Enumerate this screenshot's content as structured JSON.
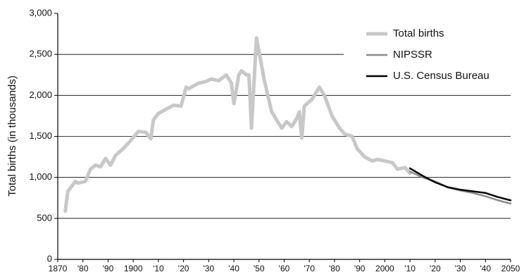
{
  "chart_data": {
    "type": "line",
    "y_label": "Total births (in thousands)",
    "xlim": [
      1870,
      2050
    ],
    "xticks": [
      1870,
      {
        "value": 1880,
        "label": "'80"
      },
      {
        "value": 1890,
        "label": "'90"
      },
      1900,
      {
        "value": 1910,
        "label": "'10"
      },
      {
        "value": 1920,
        "label": "'20"
      },
      {
        "value": 1930,
        "label": "'30"
      },
      {
        "value": 1940,
        "label": "'40"
      },
      {
        "value": 1950,
        "label": "'50"
      },
      {
        "value": 1960,
        "label": "'60"
      },
      {
        "value": 1970,
        "label": "'70"
      },
      {
        "value": 1980,
        "label": "'80"
      },
      {
        "value": 1990,
        "label": "'90"
      },
      2000,
      {
        "value": 2010,
        "label": "'10"
      },
      {
        "value": 2020,
        "label": "'20"
      },
      {
        "value": 2030,
        "label": "'30"
      },
      {
        "value": 2040,
        "label": "'40"
      },
      2050
    ],
    "ylim": [
      0,
      3000
    ],
    "yticks": [
      0,
      500,
      {
        "value": 1000,
        "label": "1,000"
      },
      {
        "value": 1500,
        "label": "1,500"
      },
      {
        "value": 2000,
        "label": "2,000"
      },
      {
        "value": 2500,
        "label": "2,500"
      },
      {
        "value": 3000,
        "label": "3,000"
      }
    ],
    "grid": true,
    "legend": "upper right",
    "series": [
      {
        "name": "Total births",
        "color": "#c8c8c8",
        "x": [
          1873,
          1874,
          1877,
          1878,
          1881,
          1883,
          1885,
          1887,
          1889,
          1891,
          1893,
          1896,
          1899,
          1902,
          1905,
          1907,
          1908,
          1910,
          1913,
          1916,
          1919,
          1921,
          1922,
          1926,
          1929,
          1931,
          1934,
          1937,
          1939,
          1940,
          1942,
          1943,
          1945,
          1946,
          1947,
          1949,
          1952,
          1955,
          1957,
          1959,
          1961,
          1963,
          1965,
          1966,
          1967,
          1968,
          1971,
          1974,
          1976,
          1979,
          1982,
          1984,
          1987,
          1989,
          1992,
          1995,
          1997,
          2000,
          2003,
          2005,
          2008,
          2010
        ],
        "values": [
          590,
          830,
          950,
          930,
          950,
          1100,
          1150,
          1130,
          1230,
          1150,
          1270,
          1350,
          1450,
          1560,
          1550,
          1470,
          1700,
          1780,
          1830,
          1880,
          1870,
          2100,
          2080,
          2150,
          2170,
          2200,
          2180,
          2250,
          2150,
          1900,
          2250,
          2300,
          2250,
          2250,
          1600,
          2700,
          2200,
          1800,
          1700,
          1600,
          1680,
          1620,
          1720,
          1800,
          1480,
          1870,
          1950,
          2100,
          2000,
          1750,
          1600,
          1530,
          1500,
          1350,
          1250,
          1200,
          1220,
          1200,
          1180,
          1100,
          1120,
          1050
        ]
      },
      {
        "name": "NIPSSR",
        "color": "#8c8c8c",
        "x": [
          2010,
          2015,
          2020,
          2025,
          2030,
          2035,
          2040,
          2045,
          2050
        ],
        "values": [
          1070,
          1000,
          950,
          880,
          840,
          810,
          770,
          720,
          680
        ]
      },
      {
        "name": "U.S. Census Bureau",
        "color": "#000000",
        "x": [
          2010,
          2015,
          2020,
          2025,
          2030,
          2035,
          2040,
          2045,
          2050
        ],
        "values": [
          1110,
          1020,
          940,
          880,
          850,
          830,
          810,
          760,
          720
        ]
      }
    ]
  }
}
